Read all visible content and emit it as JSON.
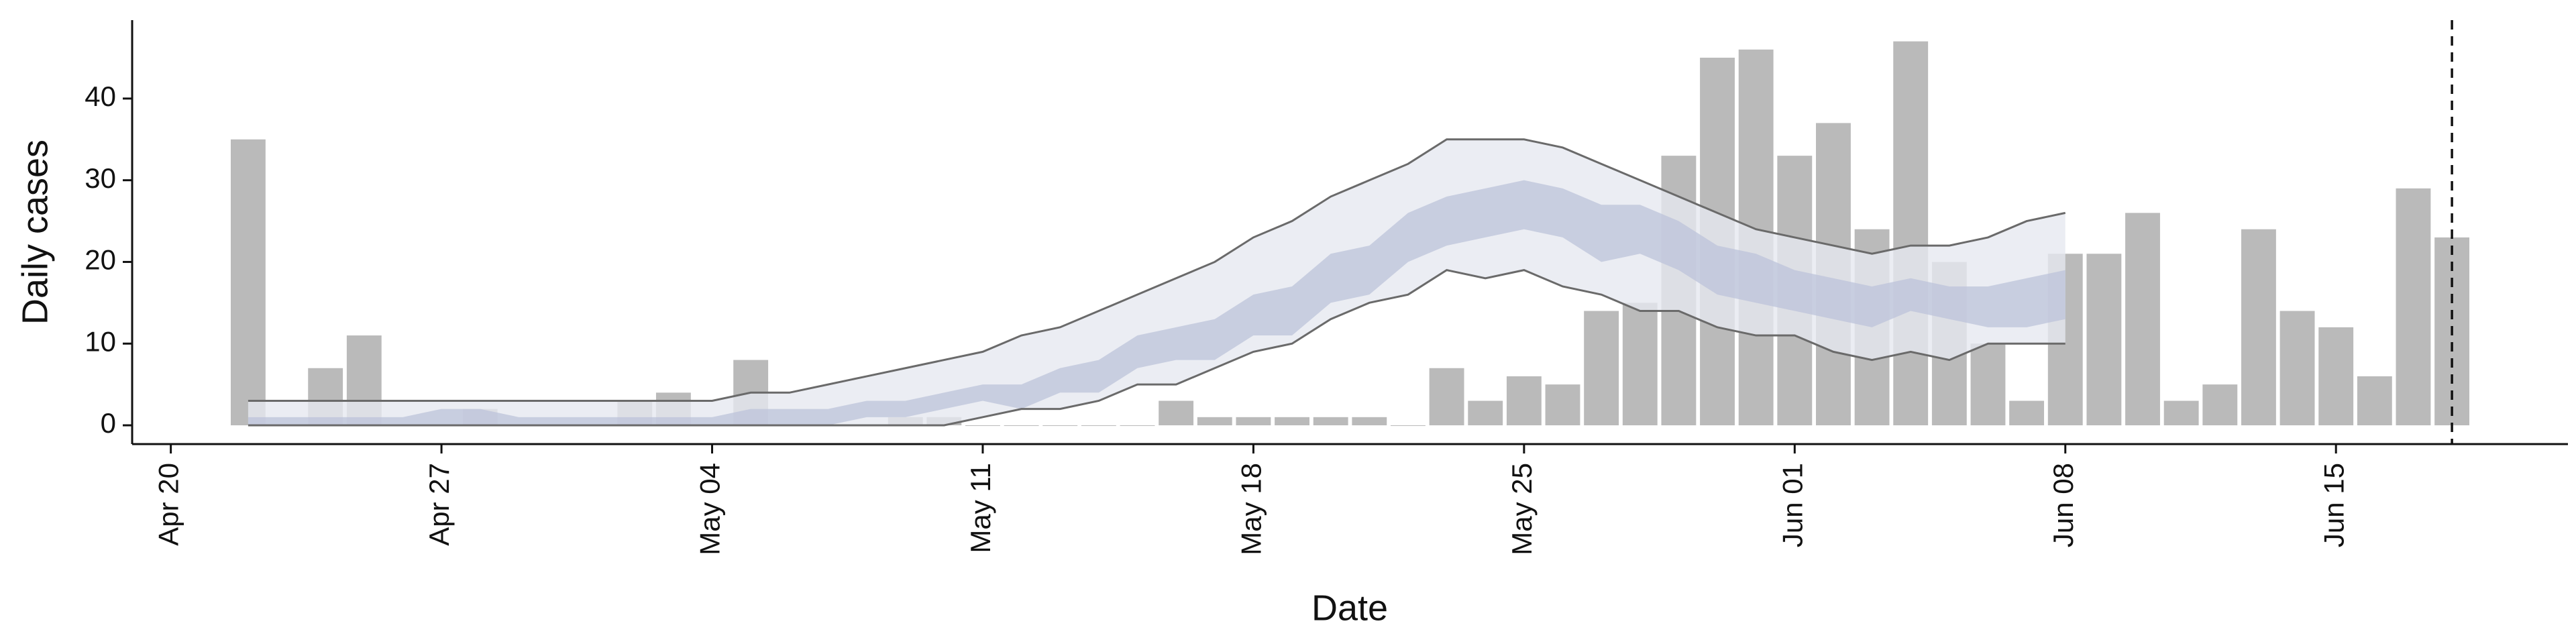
{
  "chart_data": {
    "type": "bar",
    "x_label": "Date",
    "y_label": "Daily cases",
    "color": "#bababa",
    "x": [
      "Apr 22",
      "Apr 23",
      "Apr 24",
      "Apr 25",
      "Apr 26",
      "Apr 27",
      "Apr 28",
      "Apr 29",
      "Apr 30",
      "May 01",
      "May 02",
      "May 03",
      "May 04",
      "May 05",
      "May 06",
      "May 07",
      "May 08",
      "May 09",
      "May 10",
      "May 11",
      "May 12",
      "May 13",
      "May 14",
      "May 15",
      "May 16",
      "May 17",
      "May 18",
      "May 19",
      "May 20",
      "May 21",
      "May 22",
      "May 23",
      "May 24",
      "May 25",
      "May 26",
      "May 27",
      "May 28",
      "May 29",
      "May 30",
      "May 31",
      "Jun 01",
      "Jun 02",
      "Jun 03",
      "Jun 04",
      "Jun 05",
      "Jun 06",
      "Jun 07",
      "Jun 08",
      "Jun 09",
      "Jun 10",
      "Jun 11",
      "Jun 12",
      "Jun 13",
      "Jun 14",
      "Jun 15",
      "Jun 16",
      "Jun 17",
      "Jun 18"
    ],
    "values": [
      35,
      0,
      7,
      11,
      0,
      0,
      2,
      0,
      0,
      0,
      3,
      4,
      0,
      8,
      0,
      0,
      0,
      1,
      1,
      0,
      0,
      0,
      0,
      0,
      3,
      1,
      1,
      1,
      1,
      1,
      0,
      7,
      3,
      6,
      5,
      14,
      15,
      33,
      45,
      46,
      33,
      37,
      24,
      47,
      20,
      10,
      3,
      21,
      21,
      26,
      3,
      5,
      24,
      14,
      12,
      6,
      29,
      23
    ],
    "band_x": [
      "Apr 22",
      "Apr 23",
      "Apr 24",
      "Apr 25",
      "Apr 26",
      "Apr 27",
      "Apr 28",
      "Apr 29",
      "Apr 30",
      "May 01",
      "May 02",
      "May 03",
      "May 04",
      "May 05",
      "May 06",
      "May 07",
      "May 08",
      "May 09",
      "May 10",
      "May 11",
      "May 12",
      "May 13",
      "May 14",
      "May 15",
      "May 16",
      "May 17",
      "May 18",
      "May 19",
      "May 20",
      "May 21",
      "May 22",
      "May 23",
      "May 24",
      "May 25",
      "May 26",
      "May 27",
      "May 28",
      "May 29",
      "May 30",
      "May 31",
      "Jun 01",
      "Jun 02",
      "Jun 03",
      "Jun 04",
      "Jun 05",
      "Jun 06",
      "Jun 07",
      "Jun 08"
    ],
    "bands": [
      {
        "color": "#e6e8f0",
        "lower": [
          0,
          0,
          0,
          0,
          0,
          0,
          0,
          0,
          0,
          0,
          0,
          0,
          0,
          0,
          0,
          0,
          0,
          0,
          0,
          1,
          2,
          2,
          3,
          5,
          5,
          7,
          9,
          10,
          13,
          15,
          16,
          19,
          18,
          19,
          17,
          16,
          14,
          14,
          12,
          11,
          11,
          9,
          8,
          9,
          8,
          10,
          10,
          10
        ],
        "upper": [
          3,
          3,
          3,
          3,
          3,
          3,
          3,
          3,
          3,
          3,
          3,
          3,
          3,
          4,
          4,
          5,
          6,
          7,
          8,
          9,
          11,
          12,
          14,
          16,
          18,
          20,
          23,
          25,
          28,
          30,
          32,
          35,
          35,
          35,
          34,
          32,
          30,
          28,
          26,
          24,
          23,
          22,
          21,
          22,
          22,
          23,
          25,
          26
        ]
      },
      {
        "color": "#bcc3da",
        "lower": [
          0,
          0,
          0,
          0,
          0,
          0,
          0,
          0,
          0,
          0,
          0,
          0,
          0,
          0,
          0,
          0,
          1,
          1,
          2,
          3,
          2,
          4,
          4,
          7,
          8,
          8,
          11,
          11,
          15,
          16,
          20,
          22,
          23,
          24,
          23,
          20,
          21,
          19,
          16,
          15,
          14,
          13,
          12,
          14,
          13,
          12,
          12,
          13
        ],
        "upper": [
          1,
          1,
          1,
          1,
          1,
          2,
          2,
          1,
          1,
          1,
          1,
          1,
          1,
          2,
          2,
          2,
          3,
          3,
          4,
          5,
          5,
          7,
          8,
          11,
          12,
          13,
          16,
          17,
          21,
          22,
          26,
          28,
          29,
          30,
          29,
          27,
          27,
          25,
          22,
          21,
          19,
          18,
          17,
          18,
          17,
          17,
          18,
          19
        ]
      }
    ],
    "line_color": "#6a6a6a",
    "vline_x": "Jun 18",
    "xlim": [
      "Apr 19",
      "Jun 21"
    ],
    "xticks": [
      "Apr 20",
      "Apr 27",
      "May 04",
      "May 11",
      "May 18",
      "May 25",
      "Jun 01",
      "Jun 08",
      "Jun 15"
    ],
    "ylim": [
      -2.3,
      49.6
    ],
    "yticks": [
      0,
      10,
      20,
      30,
      40
    ]
  }
}
